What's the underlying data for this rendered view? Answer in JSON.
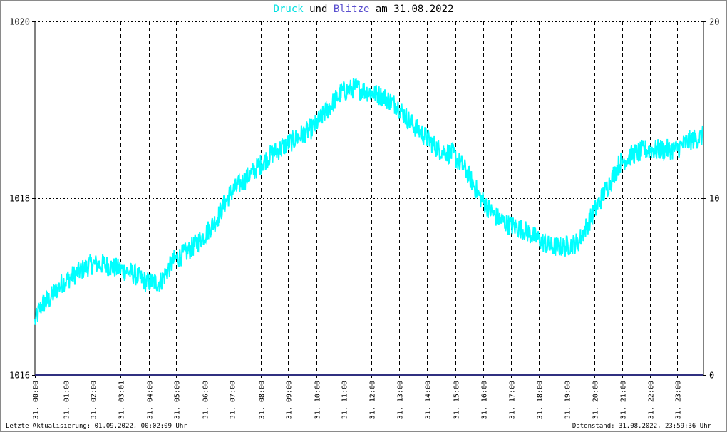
{
  "title": {
    "word1": "Druck",
    "word2": "und",
    "word3": "Blitze",
    "word4": "am 31.08.2022"
  },
  "footer": {
    "left": "Letzte Aktualisierung: 01.09.2022, 00:02:09 Uhr",
    "right": "Datenstand: 31.08.2022, 23:59:36 Uhr"
  },
  "colors": {
    "druck": "#00ffff",
    "blitze": "#303080",
    "grid": "#000000",
    "title_druck": "#00e0e0",
    "title_blitze": "#5a4fcf"
  },
  "chart_data": {
    "type": "line",
    "title": "Druck und Blitze am 31.08.2022",
    "xlabel": "",
    "ylabel": "",
    "x_range_hours": [
      0,
      24
    ],
    "ylim_left": [
      1016,
      1020
    ],
    "ylim_right": [
      0,
      20
    ],
    "left_ticks": [
      "1016",
      "1018",
      "1020"
    ],
    "left_tick_values": [
      1016,
      1018,
      1020
    ],
    "right_ticks": [
      "0",
      "10",
      "20"
    ],
    "right_tick_values": [
      0,
      10,
      20
    ],
    "x_tick_labels": [
      "31. 00:00",
      "31. 01:00",
      "31. 02:00",
      "31. 03:01",
      "31. 04:00",
      "31. 05:00",
      "31. 06:00",
      "31. 07:00",
      "31. 08:00",
      "31. 09:00",
      "31. 10:00",
      "31. 11:00",
      "31. 12:00",
      "31. 13:00",
      "31. 14:00",
      "31. 15:00",
      "31. 16:00",
      "31. 17:00",
      "31. 18:00",
      "31. 19:00",
      "31. 20:00",
      "31. 21:00",
      "31. 22:00",
      "31. 23:00"
    ],
    "x_tick_hours": [
      0,
      1.1,
      2.07,
      3.08,
      4.1,
      5.07,
      6.08,
      7.07,
      8.1,
      9.08,
      10.1,
      11.08,
      12.08,
      13.08,
      14.08,
      15.1,
      16.1,
      17.08,
      18.08,
      19.08,
      20.08,
      21.08,
      22.08,
      23.05
    ],
    "grid": true,
    "legend": "none (series names in title)",
    "series": [
      {
        "name": "Druck",
        "axis": "left",
        "x": [
          0,
          0.25,
          0.5,
          0.75,
          1,
          1.5,
          2,
          2.5,
          3,
          3.5,
          4,
          4.5,
          5,
          5.5,
          6,
          6.5,
          7,
          7.5,
          8,
          8.5,
          9,
          9.5,
          10,
          10.5,
          11,
          11.5,
          12,
          12.5,
          13,
          13.5,
          14,
          14.5,
          15,
          15.5,
          16,
          16.5,
          17,
          17.5,
          18,
          18.5,
          19,
          19.5,
          20,
          20.5,
          21,
          21.5,
          22,
          22.5,
          23,
          23.5,
          23.98
        ],
        "y": [
          1016.6,
          1016.8,
          1016.85,
          1016.95,
          1017.05,
          1017.15,
          1017.25,
          1017.25,
          1017.2,
          1017.15,
          1017.05,
          1017.05,
          1017.3,
          1017.4,
          1017.55,
          1017.75,
          1018.05,
          1018.2,
          1018.35,
          1018.5,
          1018.6,
          1018.7,
          1018.8,
          1019.0,
          1019.2,
          1019.25,
          1019.2,
          1019.15,
          1019.05,
          1018.85,
          1018.7,
          1018.55,
          1018.5,
          1018.3,
          1018.0,
          1017.8,
          1017.7,
          1017.65,
          1017.55,
          1017.45,
          1017.45,
          1017.5,
          1017.8,
          1018.1,
          1018.4,
          1018.5,
          1018.55,
          1018.55,
          1018.55,
          1018.65,
          1018.7
        ],
        "noise_amplitude": 0.12
      },
      {
        "name": "Blitze",
        "axis": "right",
        "x": [
          0,
          24
        ],
        "y": [
          0,
          0
        ]
      }
    ]
  }
}
